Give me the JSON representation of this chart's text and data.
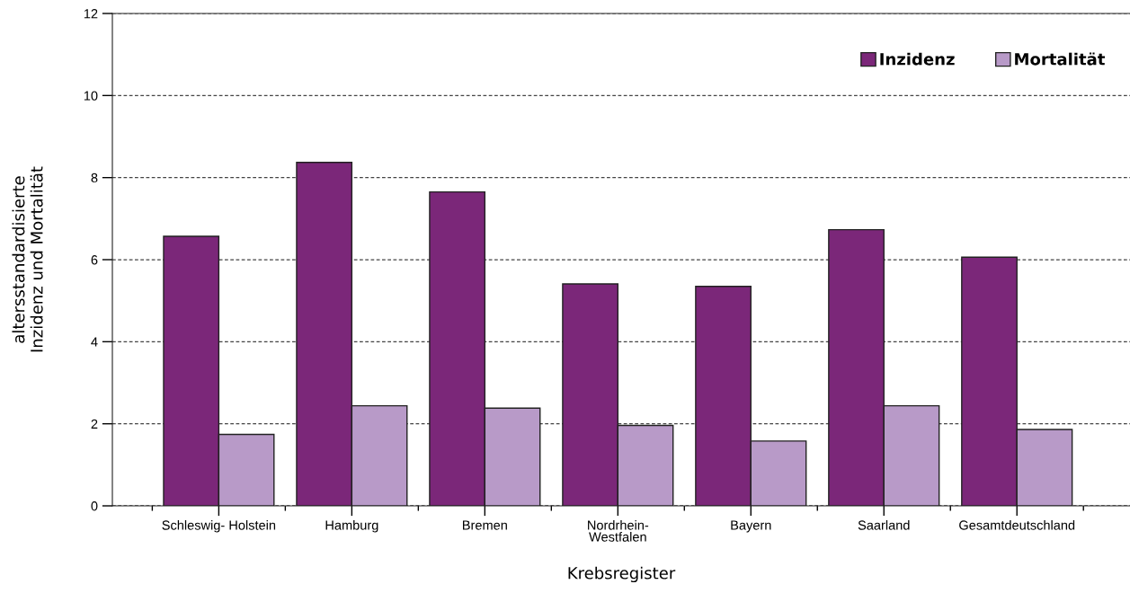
{
  "chart_data": {
    "type": "bar",
    "xlabel": "Krebsregister",
    "ylabel": "altersstandardisierte\nInzidenz und Mortalität",
    "categories": [
      "Schleswig- Holstein",
      "Hamburg",
      "Bremen",
      "Nordrhein-\nWestfalen",
      "Bayern",
      "Saarland",
      "Gesamtdeutschland"
    ],
    "series": [
      {
        "name": "Inzidenz",
        "color": "#7b2779",
        "values": [
          6.57,
          8.37,
          7.65,
          5.41,
          5.35,
          6.73,
          6.06
        ]
      },
      {
        "name": "Mortalität",
        "color": "#b89ac8",
        "values": [
          1.74,
          2.44,
          2.38,
          1.96,
          1.58,
          2.44,
          1.86
        ]
      }
    ],
    "ylim": [
      0,
      12
    ],
    "yticks": [
      0,
      2,
      4,
      6,
      8,
      10,
      12
    ],
    "grid": "y",
    "legend": "top right"
  }
}
